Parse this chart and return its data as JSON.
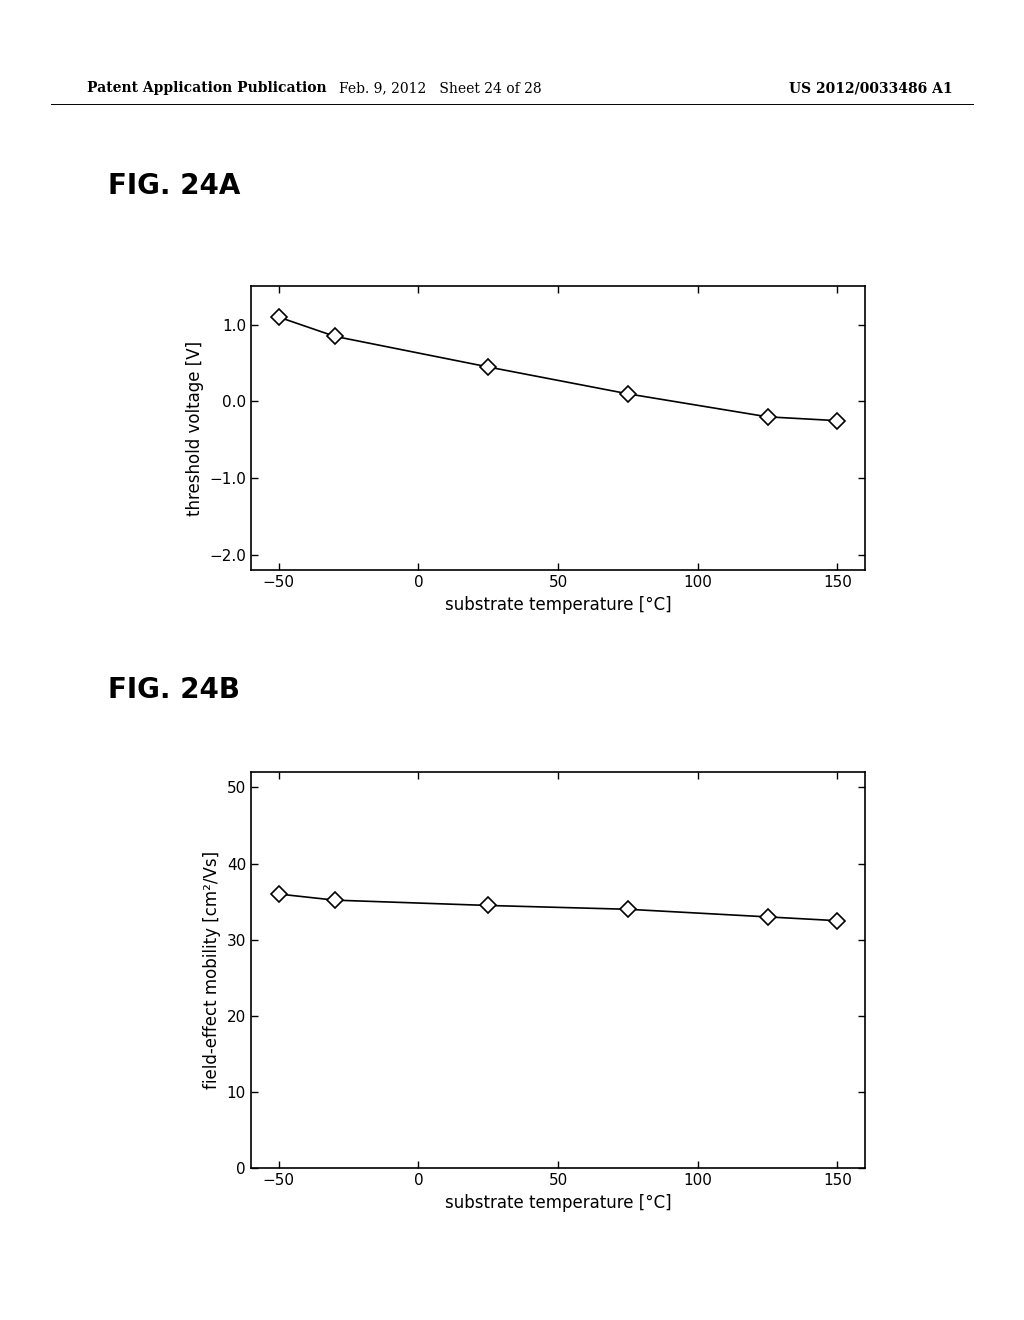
{
  "header_left": "Patent Application Publication",
  "header_center": "Feb. 9, 2012   Sheet 24 of 28",
  "header_right": "US 2012/0033486 A1",
  "fig_a_label": "FIG. 24A",
  "fig_b_label": "FIG. 24B",
  "plot_a": {
    "x": [
      -50,
      -30,
      25,
      75,
      125,
      150
    ],
    "y": [
      1.1,
      0.85,
      0.45,
      0.1,
      -0.2,
      -0.25
    ],
    "xlabel": "substrate temperature [°C]",
    "ylabel": "threshold voltage [V]",
    "xlim": [
      -60,
      160
    ],
    "ylim": [
      -2.2,
      1.5
    ],
    "xticks": [
      -50,
      0,
      50,
      100,
      150
    ],
    "yticks": [
      -2.0,
      -1.0,
      0.0,
      1.0
    ]
  },
  "plot_b": {
    "x": [
      -50,
      -30,
      25,
      75,
      125,
      150
    ],
    "y": [
      36.0,
      35.2,
      34.5,
      34.0,
      33.0,
      32.5
    ],
    "xlabel": "substrate temperature [°C]",
    "ylabel": "field-effect mobility [cm²/Vs]",
    "xlim": [
      -60,
      160
    ],
    "ylim": [
      0,
      52
    ],
    "xticks": [
      -50,
      0,
      50,
      100,
      150
    ],
    "yticks": [
      0,
      10,
      20,
      30,
      40,
      50
    ]
  },
  "line_color": "#000000",
  "marker": "D",
  "marker_facecolor": "#ffffff",
  "marker_edgecolor": "#000000",
  "marker_size": 8,
  "background_color": "#ffffff",
  "label_font_size": 12,
  "tick_font_size": 11,
  "header_font_size": 10,
  "fig_label_font_size": 20
}
